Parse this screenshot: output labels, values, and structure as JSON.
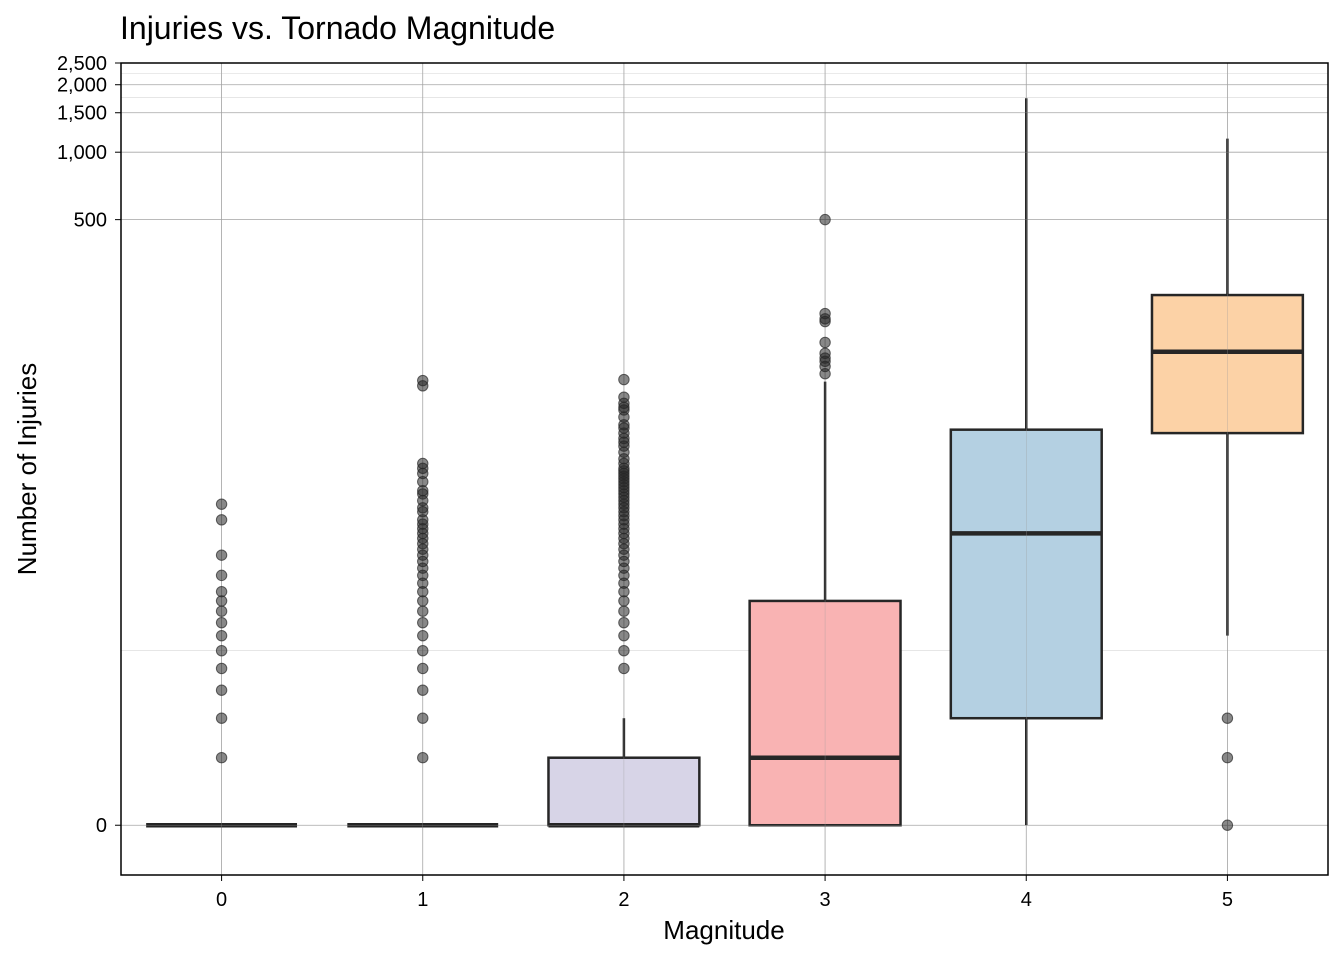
{
  "chart_data": {
    "type": "box",
    "title": "Injuries vs. Tornado Magnitude",
    "xlabel": "Magnitude",
    "ylabel": "Number of Injuries",
    "y_scale": "log1p",
    "ylim": [
      -0.4,
      2500
    ],
    "grid": true,
    "y_ticks": [
      0,
      500,
      1000,
      1500,
      2000,
      2500
    ],
    "y_tick_labels": [
      "0",
      "500",
      "1,000",
      "1,500",
      "2,000",
      "2,500"
    ],
    "y_minor_ticks": [
      5,
      1750,
      2250
    ],
    "categories": [
      "0",
      "1",
      "2",
      "3",
      "4",
      "5"
    ],
    "colors": {
      "0": "#d7d4e7",
      "1": "#d7d4e7",
      "2": "#d7d4e7",
      "3": "#f9b3b3",
      "4": "#b4d0e2",
      "5": "#fcd2a6",
      "outline": "#262626",
      "outlier": "#262626"
    },
    "boxes": [
      {
        "category": "0",
        "q1": 0,
        "median": 0,
        "q3": 0,
        "whisker_low": 0,
        "whisker_high": 0,
        "outliers": [
          1,
          2,
          3,
          4,
          5,
          6,
          7,
          8,
          9,
          10,
          12,
          15,
          22,
          26
        ]
      },
      {
        "category": "1",
        "q1": 0,
        "median": 0,
        "q3": 0,
        "whisker_low": 0,
        "whisker_high": 0,
        "outliers": [
          1,
          2,
          3,
          4,
          5,
          6,
          7,
          8,
          9,
          10,
          11,
          12,
          13,
          14,
          15,
          16,
          17,
          18,
          19,
          20,
          21,
          22,
          24,
          25,
          27,
          29,
          30,
          33,
          36,
          38,
          40,
          90,
          95
        ]
      },
      {
        "category": "2",
        "q1": 0,
        "median": 0,
        "q3": 1,
        "whisker_low": 0,
        "whisker_high": 2,
        "outliers": [
          4,
          5,
          6,
          7,
          8,
          9,
          10,
          11,
          12,
          13,
          14,
          15,
          16,
          17,
          18,
          19,
          20,
          21,
          22,
          23,
          24,
          25,
          26,
          27,
          28,
          29,
          30,
          31,
          32,
          33,
          34,
          35,
          36,
          37,
          38,
          40,
          42,
          45,
          48,
          50,
          52,
          55,
          58,
          60,
          65,
          70,
          72,
          75,
          80,
          96
        ]
      },
      {
        "category": "3",
        "q1": 0,
        "median": 1,
        "q3": 9,
        "whisker_low": 0,
        "whisker_high": 94,
        "outliers": [
          102,
          110,
          116,
          120,
          126,
          141,
          175,
          180,
          190,
          500
        ]
      },
      {
        "category": "4",
        "q1": 2,
        "median": 19,
        "q3": 57,
        "whisker_low": 0,
        "whisker_high": 1740,
        "outliers": []
      },
      {
        "category": "5",
        "q1": 55,
        "median": 128,
        "q3": 230,
        "whisker_low": 6,
        "whisker_high": 1150,
        "outliers": [
          0,
          1,
          2
        ]
      }
    ]
  }
}
